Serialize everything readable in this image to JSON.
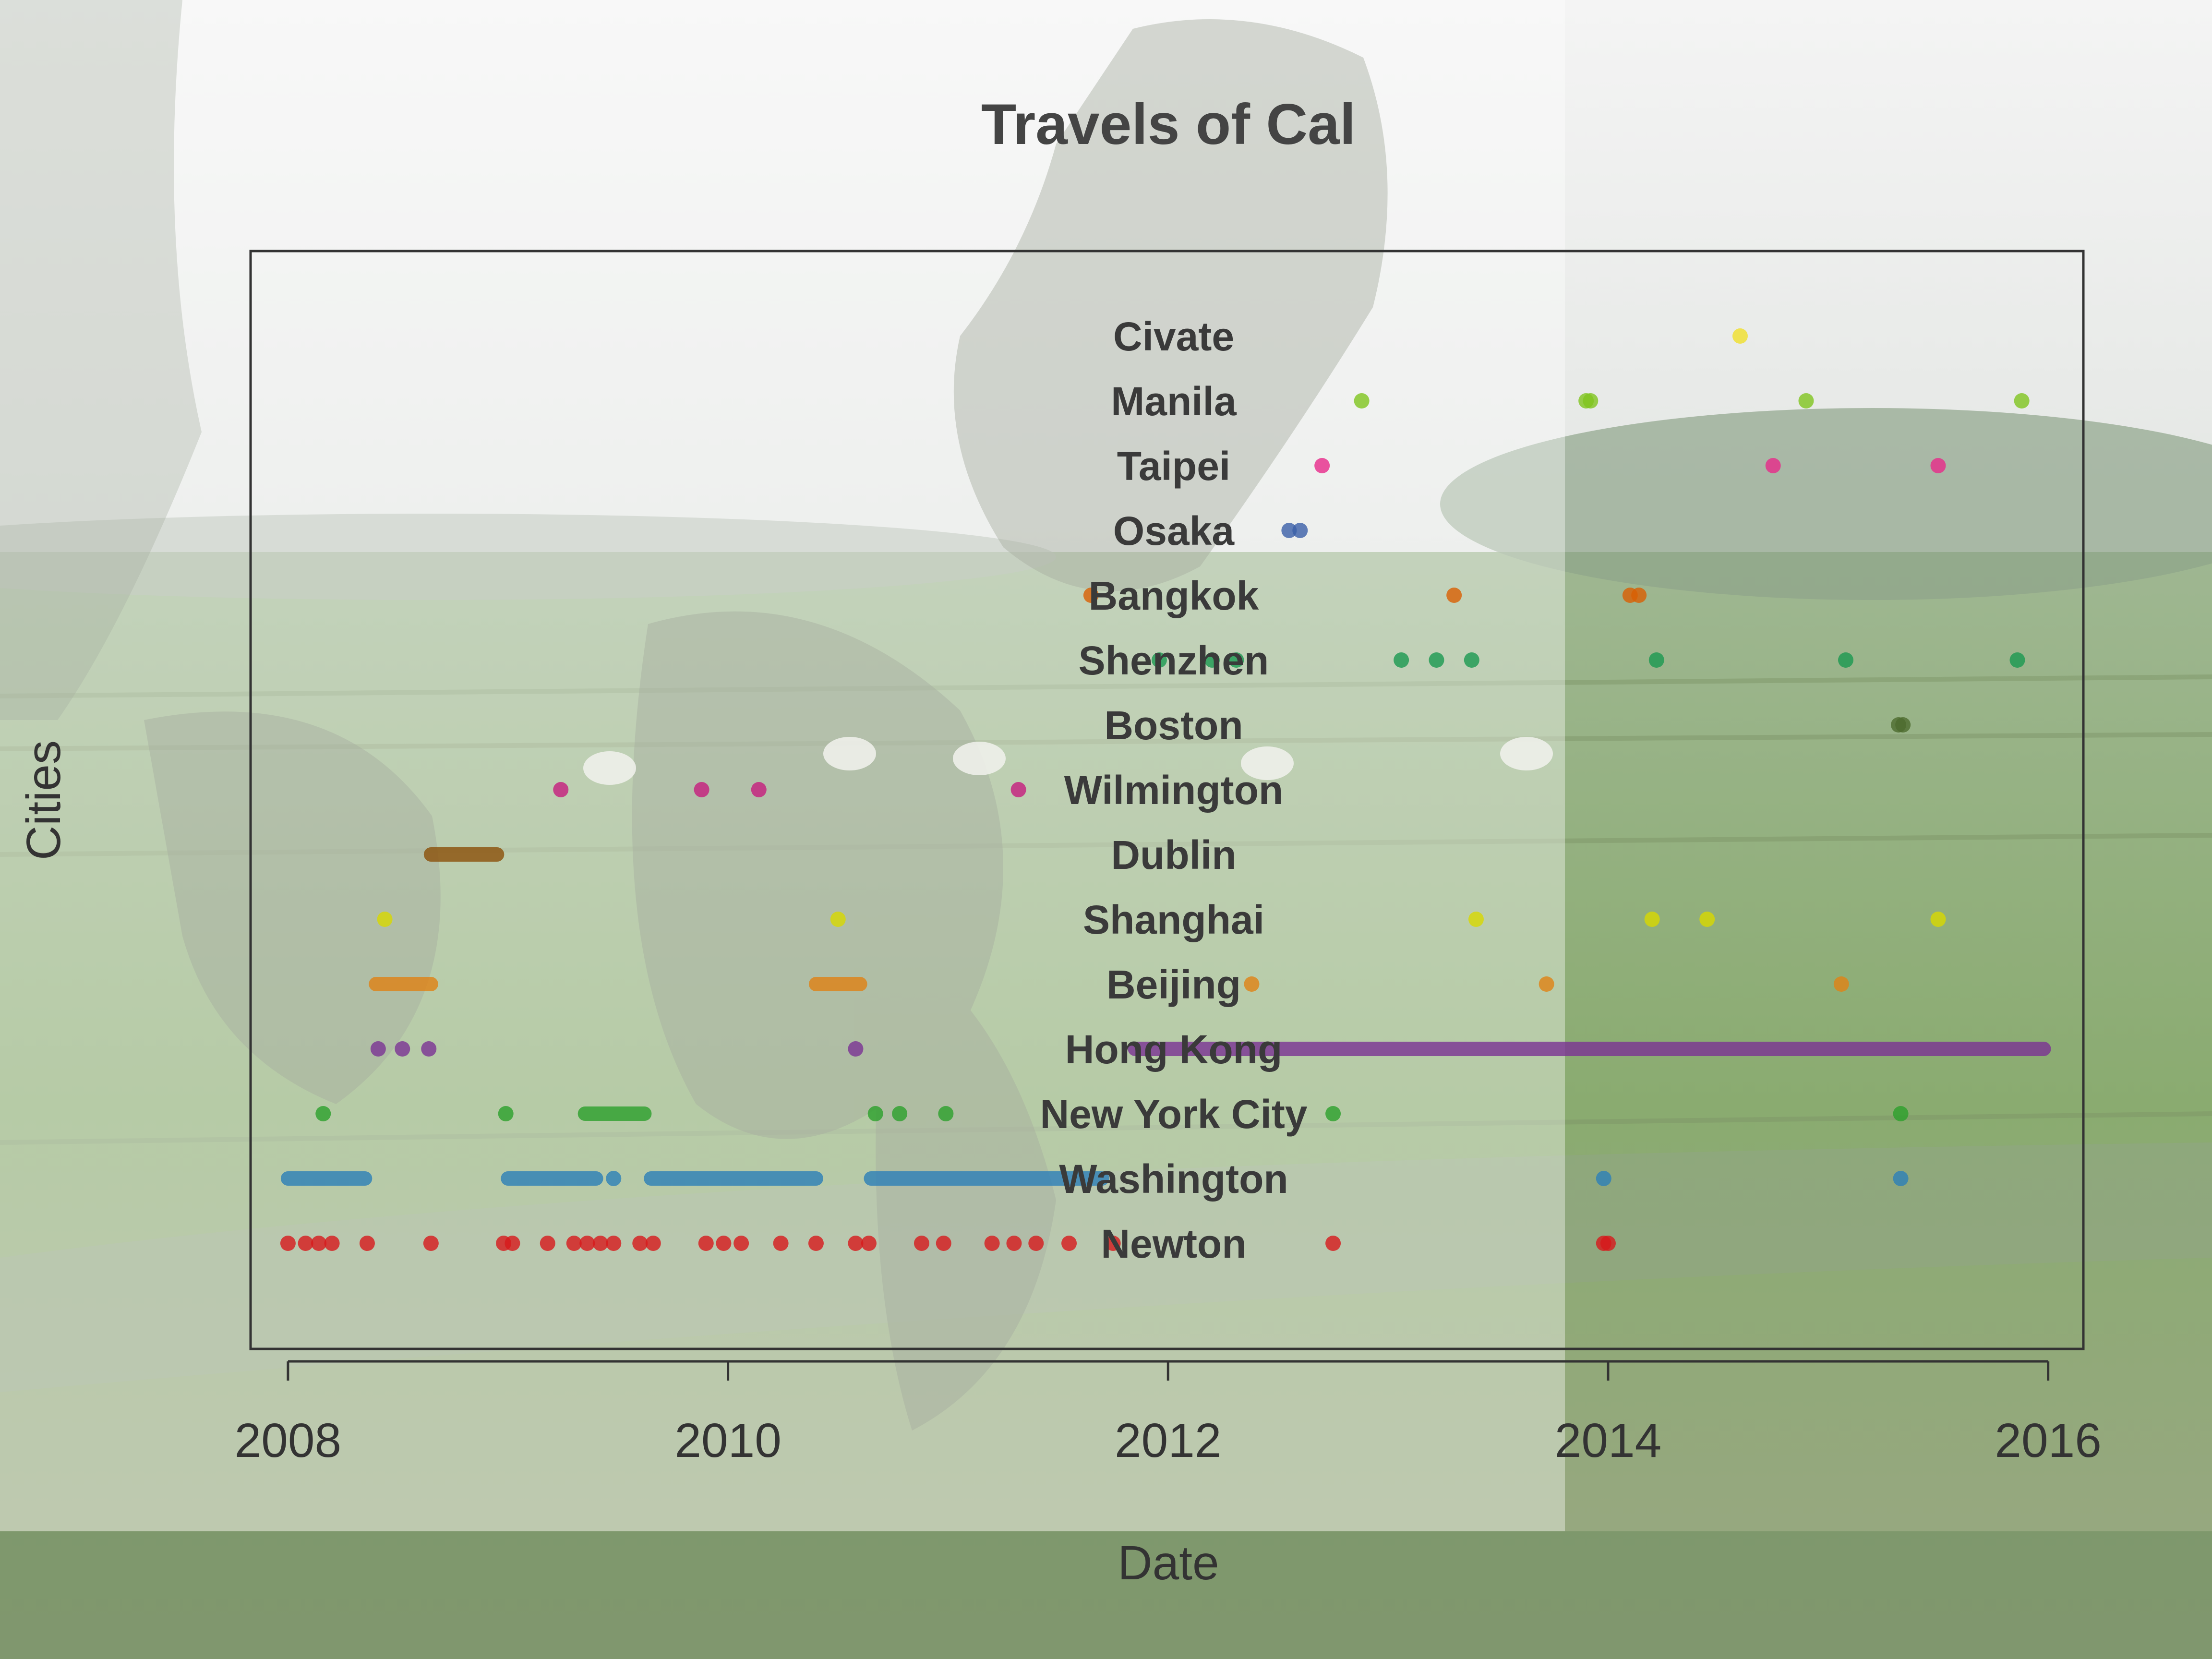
{
  "chart_data": {
    "type": "scatter",
    "title": "Travels of Cal",
    "xlabel": "Date",
    "ylabel": "Cities",
    "xlim": [
      2007.83,
      2016.16
    ],
    "x_ticks": [
      "2008",
      "2010",
      "2012",
      "2014",
      "2016"
    ],
    "categories": [
      "Newton",
      "Washington",
      "New York City",
      "Hong Kong",
      "Beijing",
      "Shanghai",
      "Dublin",
      "Wilmington",
      "Boston",
      "Shenzhen",
      "Bangkok",
      "Osaka",
      "Taipei",
      "Manila",
      "Civate"
    ],
    "grid": false,
    "legend": "none",
    "series": [
      {
        "city": "Newton",
        "color": "#d7191c",
        "x": [
          2008.0,
          2008.08,
          2008.14,
          2008.2,
          2008.36,
          2008.65,
          2008.98,
          2009.02,
          2009.18,
          2009.3,
          2009.36,
          2009.42,
          2009.48,
          2009.6,
          2009.66,
          2009.9,
          2009.98,
          2010.06,
          2010.24,
          2010.4,
          2010.58,
          2010.64,
          2010.88,
          2010.98,
          2011.2,
          2011.3,
          2011.4,
          2011.55,
          2011.75,
          2012.75,
          2013.98,
          2014.0
        ]
      },
      {
        "city": "Washington",
        "color": "#2c7fb8",
        "ranges": [
          [
            2008.0,
            2008.35
          ],
          [
            2009.0,
            2009.4
          ],
          [
            2009.65,
            2010.4
          ],
          [
            2010.65,
            2011.7
          ]
        ],
        "x": [
          2009.48,
          2013.98,
          2015.33
        ]
      },
      {
        "city": "New York City",
        "color": "#2ca02c",
        "ranges": [
          [
            2009.35,
            2009.62
          ]
        ],
        "x": [
          2008.16,
          2008.99,
          2010.67,
          2010.78,
          2010.99,
          2012.75,
          2015.33
        ]
      },
      {
        "city": "Hong Kong",
        "color": "#7b3294",
        "ranges": [
          [
            2011.85,
            2015.98
          ]
        ],
        "x": [
          2008.41,
          2008.52,
          2008.64,
          2010.58
        ]
      },
      {
        "city": "Beijing",
        "color": "#e08214",
        "ranges": [
          [
            2008.4,
            2008.65
          ],
          [
            2010.4,
            2010.6
          ]
        ],
        "x": [
          2012.38,
          2013.72,
          2015.06
        ]
      },
      {
        "city": "Shanghai",
        "color": "#d8d800",
        "x": [
          2008.44,
          2010.5,
          2013.4,
          2014.2,
          2014.45,
          2015.5
        ]
      },
      {
        "city": "Dublin",
        "color": "#8c510a",
        "ranges": [
          [
            2008.65,
            2008.95
          ]
        ],
        "x": []
      },
      {
        "city": "Wilmington",
        "color": "#c51b7d",
        "x": [
          2009.24,
          2009.88,
          2010.14,
          2011.32
        ]
      },
      {
        "city": "Boston",
        "color": "#4d6b2e",
        "x": [
          2015.32,
          2015.34
        ]
      },
      {
        "city": "Shenzhen",
        "color": "#1a9850",
        "x": [
          2011.96,
          2012.2,
          2012.31,
          2013.06,
          2013.22,
          2013.38,
          2014.22,
          2015.08,
          2015.86
        ]
      },
      {
        "city": "Bangkok",
        "color": "#d95f02",
        "x": [
          2011.65,
          2013.3,
          2014.1,
          2014.14
        ]
      },
      {
        "city": "Osaka",
        "color": "#3a5fa8",
        "x": [
          2012.55,
          2012.6
        ]
      },
      {
        "city": "Taipei",
        "color": "#e7298a",
        "x": [
          2012.7,
          2014.75,
          2015.5
        ]
      },
      {
        "city": "Manila",
        "color": "#7fc41e",
        "x": [
          2012.88,
          2013.9,
          2013.92,
          2014.9,
          2015.88
        ]
      },
      {
        "city": "Civate",
        "color": "#f0e02a",
        "x": [
          2014.6
        ]
      }
    ]
  }
}
